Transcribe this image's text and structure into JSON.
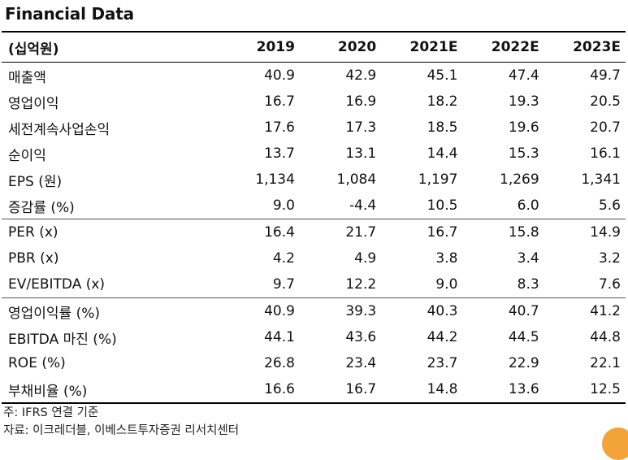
{
  "title": "Financial Data",
  "header": {
    "label": "(십억원)",
    "years": [
      "2019",
      "2020",
      "2021E",
      "2022E",
      "2023E"
    ]
  },
  "rows": [
    {
      "label": "매출액",
      "values": [
        "40.9",
        "42.9",
        "45.1",
        "47.4",
        "49.7"
      ]
    },
    {
      "label": "영업이익",
      "values": [
        "16.7",
        "16.9",
        "18.2",
        "19.3",
        "20.5"
      ]
    },
    {
      "label": "세전계속사업손익",
      "values": [
        "17.6",
        "17.3",
        "18.5",
        "19.6",
        "20.7"
      ]
    },
    {
      "label": "순이익",
      "values": [
        "13.7",
        "13.1",
        "14.4",
        "15.3",
        "16.1"
      ]
    },
    {
      "label": "EPS (원)",
      "values": [
        "1,134",
        "1,084",
        "1,197",
        "1,269",
        "1,341"
      ]
    },
    {
      "label": "증감률 (%)",
      "values": [
        "9.0",
        "-4.4",
        "10.5",
        "6.0",
        "5.6"
      ]
    },
    {
      "label": "PER (x)",
      "values": [
        "16.4",
        "21.7",
        "16.7",
        "15.8",
        "14.9"
      ]
    },
    {
      "label": "PBR (x)",
      "values": [
        "4.2",
        "4.9",
        "3.8",
        "3.4",
        "3.2"
      ]
    },
    {
      "label": "EV/EBITDA (x)",
      "values": [
        "9.7",
        "12.2",
        "9.0",
        "8.3",
        "7.6"
      ]
    },
    {
      "label": "영업이익률 (%)",
      "values": [
        "40.9",
        "39.3",
        "40.3",
        "40.7",
        "41.2"
      ]
    },
    {
      "label": "EBITDA 마진 (%)",
      "values": [
        "44.1",
        "43.6",
        "44.2",
        "44.5",
        "44.8"
      ]
    },
    {
      "label": "ROE (%)",
      "values": [
        "26.8",
        "23.4",
        "23.7",
        "22.9",
        "22.1"
      ]
    },
    {
      "label": "부채비율 (%)",
      "values": [
        "16.6",
        "16.7",
        "14.8",
        "13.6",
        "12.5"
      ]
    }
  ],
  "footnotes": {
    "note": "주: IFRS 연결 기준",
    "source": "자료: 이크레더블, 이베스트투자증권 리서치센터"
  },
  "colors": {
    "accent": "#f2a33a"
  }
}
